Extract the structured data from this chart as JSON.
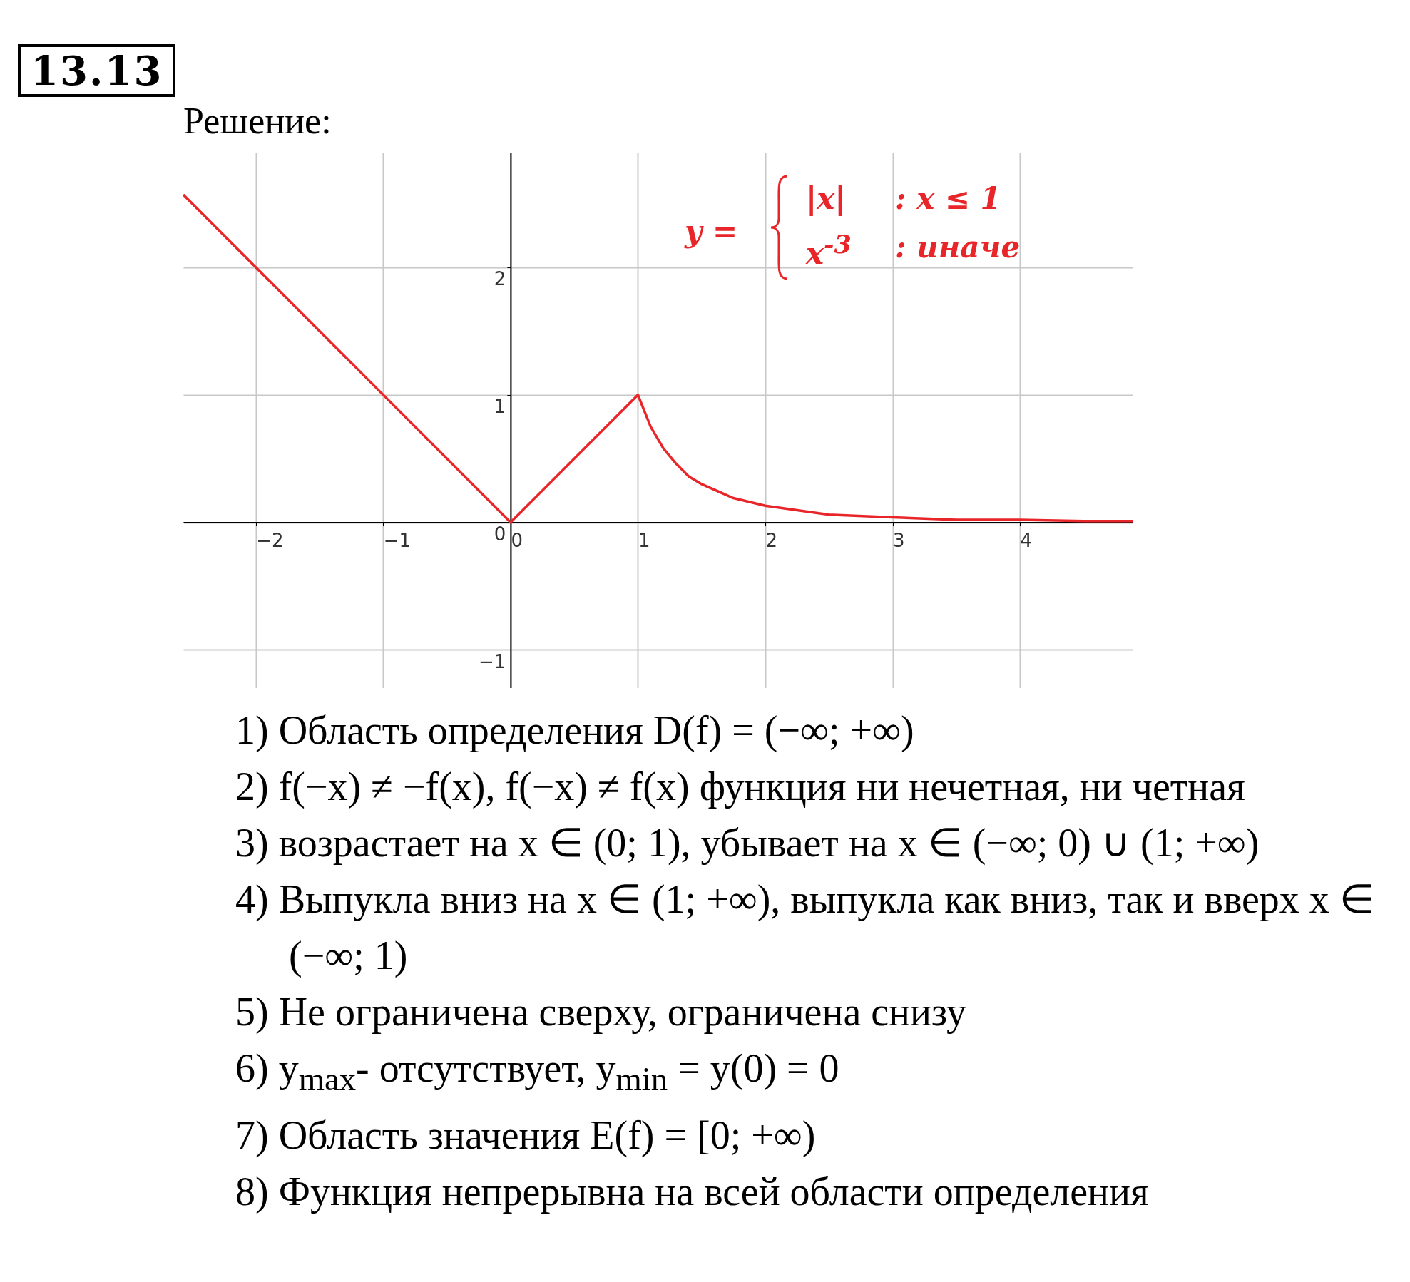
{
  "chart_data": {
    "type": "line",
    "title": "13.13",
    "subtitle": "Решение:",
    "x": [
      -2.57,
      0,
      1,
      1.1,
      1.2,
      1.3,
      1.4,
      1.5,
      1.75,
      2,
      2.5,
      3,
      3.5,
      4,
      4.5,
      4.89
    ],
    "values": [
      2.57,
      0,
      1,
      0.75,
      0.58,
      0.46,
      0.36,
      0.3,
      0.19,
      0.13,
      0.06,
      0.04,
      0.02,
      0.02,
      0.01,
      0.01
    ],
    "color": "#e8262a",
    "xlim": [
      -2.57,
      4.89
    ],
    "ylim": [
      -1.3,
      2.9
    ],
    "xticks": [
      -2,
      -1,
      0,
      1,
      2,
      3,
      4
    ],
    "yticks": [
      -1,
      0,
      1,
      2
    ],
    "grid": true,
    "annotations": [
      "y =",
      "|x|",
      ": x ≤ 1",
      "x$^{-3}$",
      ": иначе",
      "1) Область определения D(f) = (−∞; +∞)",
      "2) f(−x) ≠ −f(x), f(−x) ≠ f(x) функция ни нечетная, ни четная",
      "3) возрастает на x ∈ (0; 1), убывает на x ∈ (−∞; 0) ∪ (1; +∞)",
      "4) Выпукла вниз на x ∈ (1; +∞), выпукла как вниз, так и вверх x ∈ (−∞; 1)",
      "5) Не ограничена сверху, ограничена снизу",
      "6) y$_{max}$- отсутствует, y$_{min}$ = y(0) = 0",
      "7) Область значения E(f) = [0; +∞)",
      "8) Функция непрерывна на всей области определения"
    ]
  }
}
